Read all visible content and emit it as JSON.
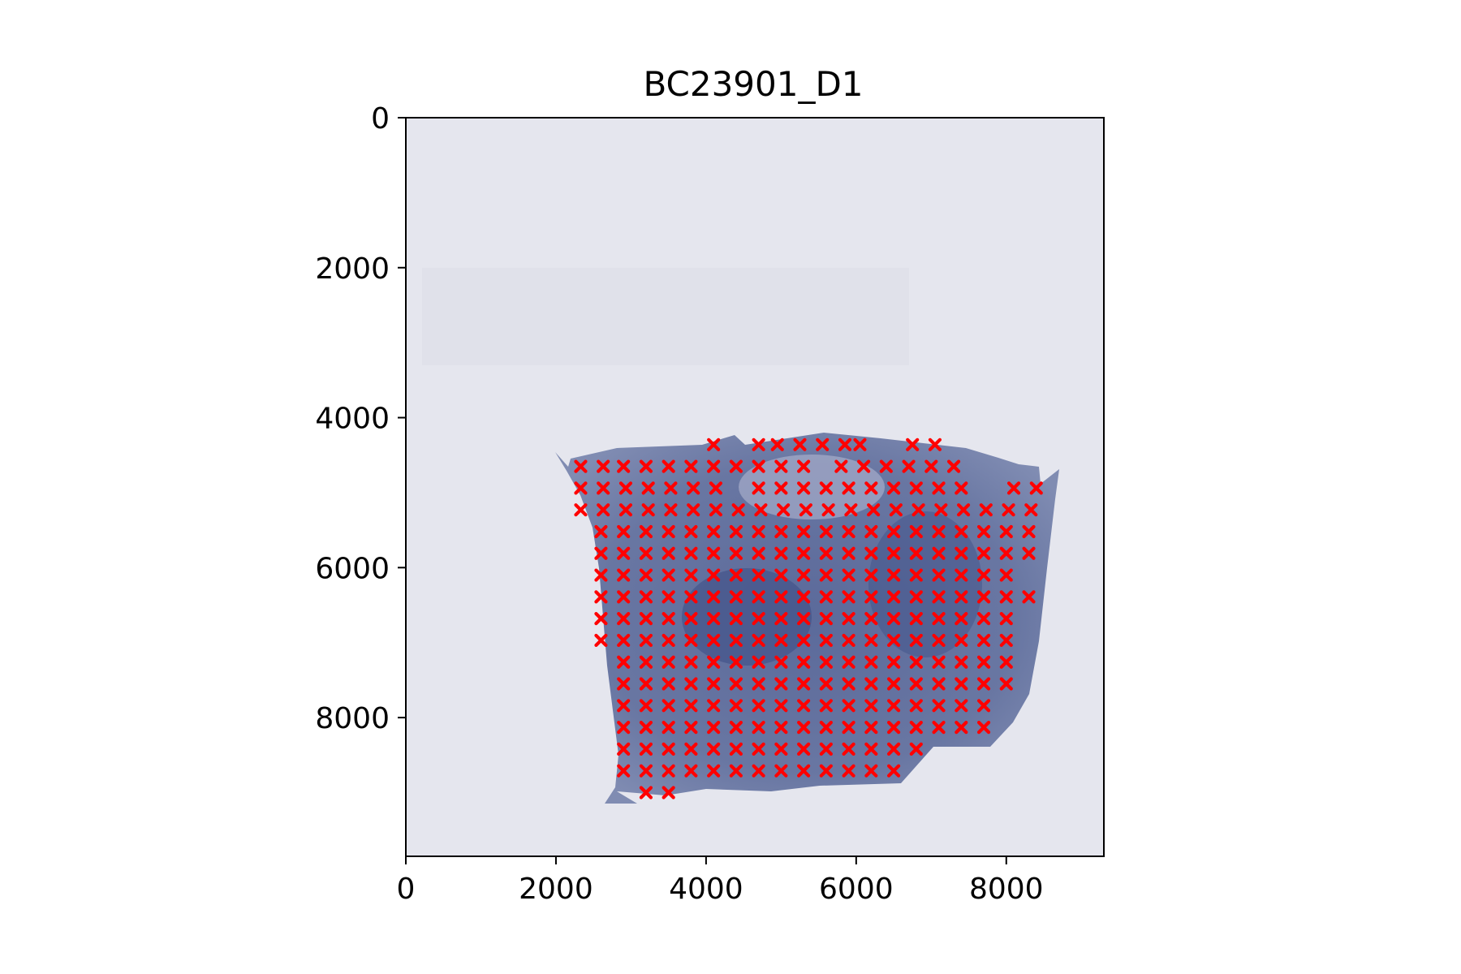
{
  "chart_data": {
    "type": "scatter",
    "title": "BC23901_D1",
    "xlabel": "",
    "ylabel": "",
    "xlim": [
      0,
      9300
    ],
    "ylim": [
      9850,
      0
    ],
    "y_inverted": true,
    "grid": false,
    "legend": "none",
    "x_ticks": [
      0,
      2000,
      4000,
      6000,
      8000
    ],
    "y_ticks": [
      0,
      2000,
      4000,
      6000,
      8000
    ],
    "background": "tissue-section-image",
    "marker": "x",
    "marker_color": "#ff0000",
    "x_grid_start": 2330,
    "x_grid_step": 300,
    "y_grid_start": 4360,
    "y_grid_step": 290,
    "rows": [
      {
        "y": 4360,
        "x_ranges": [
          [
            4100,
            4100
          ],
          [
            4700,
            4700
          ],
          [
            4950,
            5250
          ],
          [
            5550,
            5850
          ],
          [
            6050,
            6050
          ],
          [
            6750,
            7250
          ]
        ]
      },
      {
        "y": 4650,
        "x_ranges": [
          [
            2330,
            2630
          ],
          [
            2900,
            5550
          ],
          [
            5800,
            7550
          ]
        ]
      },
      {
        "y": 4940,
        "x_ranges": [
          [
            2330,
            4400
          ],
          [
            4700,
            7550
          ],
          [
            8100,
            8400
          ]
        ]
      },
      {
        "y": 5230,
        "x_ranges": [
          [
            2330,
            8400
          ]
        ]
      },
      {
        "y": 5520,
        "x_ranges": [
          [
            2600,
            8400
          ]
        ]
      },
      {
        "y": 5810,
        "x_ranges": [
          [
            2600,
            8400
          ]
        ]
      },
      {
        "y": 6100,
        "x_ranges": [
          [
            2600,
            8100
          ]
        ]
      },
      {
        "y": 6390,
        "x_ranges": [
          [
            2600,
            8400
          ]
        ]
      },
      {
        "y": 6680,
        "x_ranges": [
          [
            2600,
            8100
          ]
        ]
      },
      {
        "y": 6970,
        "x_ranges": [
          [
            2600,
            8100
          ]
        ]
      },
      {
        "y": 7260,
        "x_ranges": [
          [
            2900,
            8100
          ]
        ]
      },
      {
        "y": 7550,
        "x_ranges": [
          [
            2900,
            8100
          ]
        ]
      },
      {
        "y": 7840,
        "x_ranges": [
          [
            2900,
            7800
          ]
        ]
      },
      {
        "y": 8130,
        "x_ranges": [
          [
            2900,
            7800
          ]
        ]
      },
      {
        "y": 8420,
        "x_ranges": [
          [
            2900,
            6950
          ]
        ]
      },
      {
        "y": 8710,
        "x_ranges": [
          [
            2900,
            6750
          ]
        ]
      },
      {
        "y": 9000,
        "x_ranges": [
          [
            3200,
            3200
          ],
          [
            3500,
            3500
          ]
        ]
      }
    ]
  }
}
